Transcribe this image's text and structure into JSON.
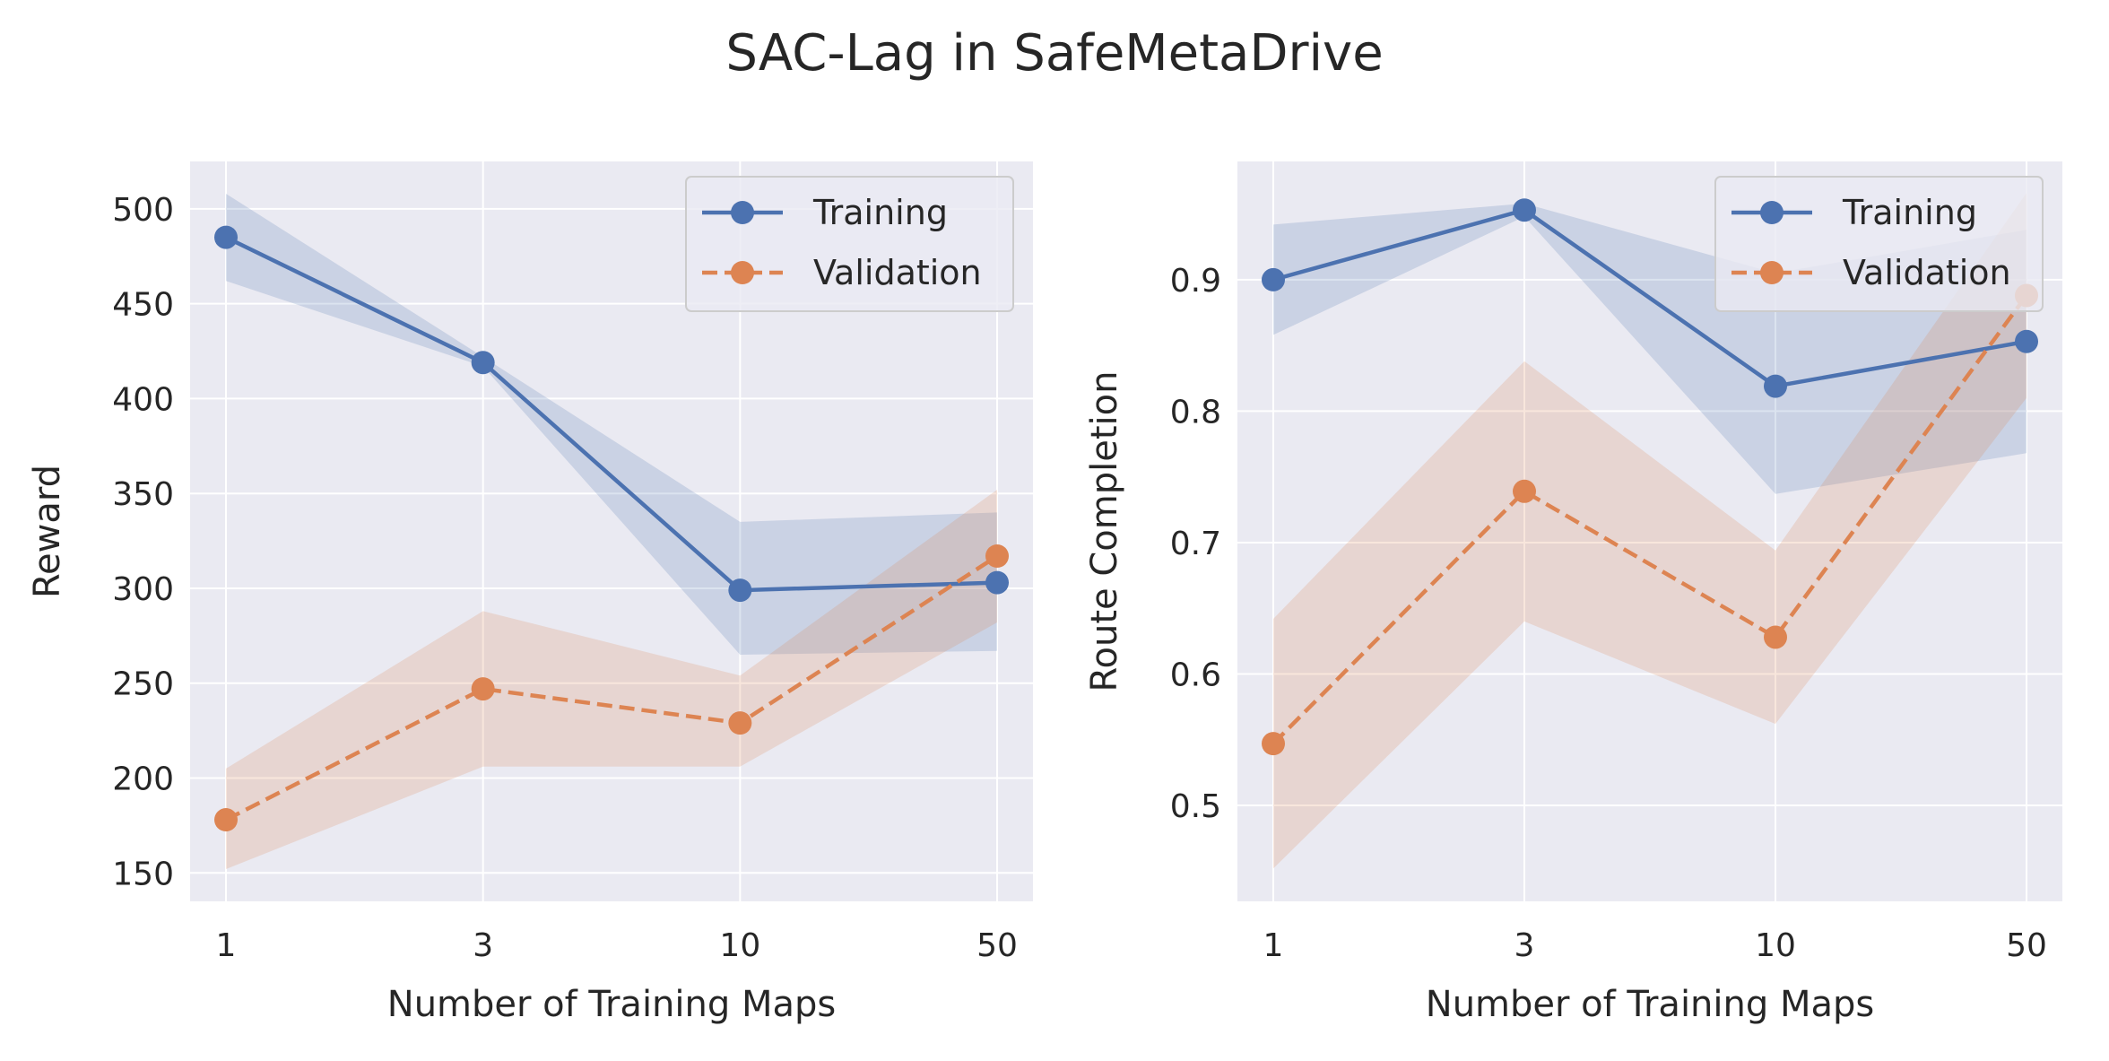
{
  "figure_title": "SAC-Lag in SafeMetaDrive",
  "colors": {
    "training": "#4c72b0",
    "validation": "#dd8452",
    "panel_bg": "#eaeaf2",
    "grid": "#ffffff"
  },
  "chart_data": [
    {
      "type": "line",
      "xlabel": "Number of Training Maps",
      "ylabel": "Reward",
      "categories": [
        "1",
        "3",
        "10",
        "50"
      ],
      "ylim": [
        135,
        525
      ],
      "yticks": [
        150,
        200,
        250,
        300,
        350,
        400,
        450,
        500
      ],
      "ytick_labels": [
        "150",
        "200",
        "250",
        "300",
        "350",
        "400",
        "450",
        "500"
      ],
      "grid": true,
      "legend": "top-right",
      "series": [
        {
          "name": "Training",
          "color_key": "training",
          "dashed": false,
          "values": [
            485,
            419,
            299,
            303
          ],
          "lower": [
            462,
            417,
            265,
            267
          ],
          "upper": [
            508,
            422,
            335,
            340
          ]
        },
        {
          "name": "Validation",
          "color_key": "validation",
          "dashed": true,
          "values": [
            178,
            247,
            229,
            317
          ],
          "lower": [
            152,
            206,
            206,
            282
          ],
          "upper": [
            205,
            288,
            254,
            352
          ]
        }
      ]
    },
    {
      "type": "line",
      "xlabel": "Number of Training Maps",
      "ylabel": "Route Completion",
      "categories": [
        "1",
        "3",
        "10",
        "50"
      ],
      "ylim": [
        0.427,
        0.99
      ],
      "yticks": [
        0.5,
        0.6,
        0.7,
        0.8,
        0.9
      ],
      "ytick_labels": [
        "0.5",
        "0.6",
        "0.7",
        "0.8",
        "0.9"
      ],
      "grid": true,
      "legend": "top-right",
      "series": [
        {
          "name": "Training",
          "color_key": "training",
          "dashed": false,
          "values": [
            0.9,
            0.953,
            0.819,
            0.853
          ],
          "lower": [
            0.858,
            0.948,
            0.737,
            0.768
          ],
          "upper": [
            0.942,
            0.958,
            0.905,
            0.938
          ]
        },
        {
          "name": "Validation",
          "color_key": "validation",
          "dashed": true,
          "values": [
            0.547,
            0.739,
            0.628,
            0.888
          ],
          "lower": [
            0.452,
            0.64,
            0.562,
            0.81
          ],
          "upper": [
            0.642,
            0.838,
            0.694,
            0.966
          ]
        }
      ]
    }
  ]
}
